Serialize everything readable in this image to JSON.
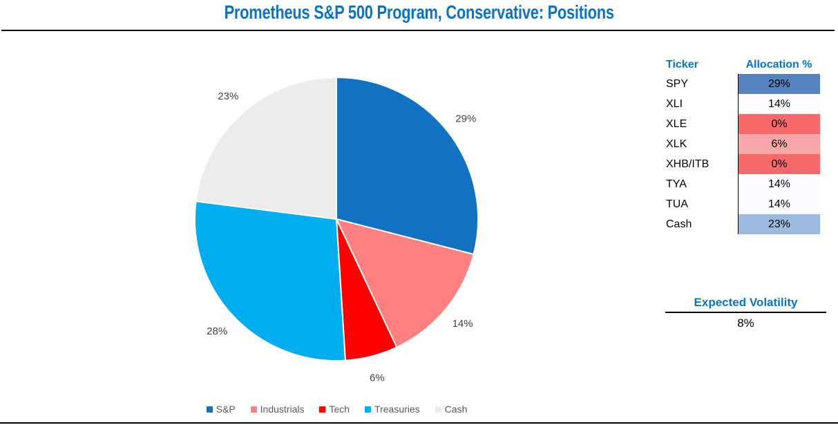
{
  "header": {
    "title": "Prometheus S&P 500 Program, Conservative: Positions"
  },
  "colors": {
    "title_blue": "#0D72C4",
    "table_header_blue": "#0C74C8",
    "pie_label_gray": "#404040",
    "legend_text_gray": "#595959",
    "divider_black": "#000000"
  },
  "chart_data": {
    "type": "pie",
    "title": "Prometheus S&P 500 Program, Conservative: Positions",
    "categories": [
      "S&P",
      "Industrials",
      "Tech",
      "Treasuries",
      "Cash"
    ],
    "values": [
      29,
      14,
      6,
      28,
      23
    ],
    "data_labels": [
      "29%",
      "14%",
      "6%",
      "28%",
      "23%"
    ],
    "colors": [
      "#1272C1",
      "#FF8080",
      "#FE0000",
      "#00AEF0",
      "#EBEBEB"
    ],
    "slice_border_color": "#FFFFFF",
    "start_angle_deg": 0,
    "direction": "clockwise",
    "legend_position": "bottom",
    "data_label_position": "outside"
  },
  "allocation_table": {
    "headers": {
      "ticker": "Ticker",
      "allocation": "Allocation %"
    },
    "rows": [
      {
        "ticker": "SPY",
        "allocation": "29%",
        "cell_color": "#5483C0"
      },
      {
        "ticker": "XLI",
        "allocation": "14%",
        "cell_color": "#FAFBFE"
      },
      {
        "ticker": "XLE",
        "allocation": "0%",
        "cell_color": "#F8696B"
      },
      {
        "ticker": "XLK",
        "allocation": "6%",
        "cell_color": "#F8A7A9"
      },
      {
        "ticker": "XHB/ITB",
        "allocation": "0%",
        "cell_color": "#F8696B"
      },
      {
        "ticker": "TYA",
        "allocation": "14%",
        "cell_color": "#FAFBFE"
      },
      {
        "ticker": "TUA",
        "allocation": "14%",
        "cell_color": "#FAFBFE"
      },
      {
        "ticker": "Cash",
        "allocation": "23%",
        "cell_color": "#9DB9DE"
      }
    ]
  },
  "volatility": {
    "label": "Expected Volatility",
    "value": "8%"
  }
}
